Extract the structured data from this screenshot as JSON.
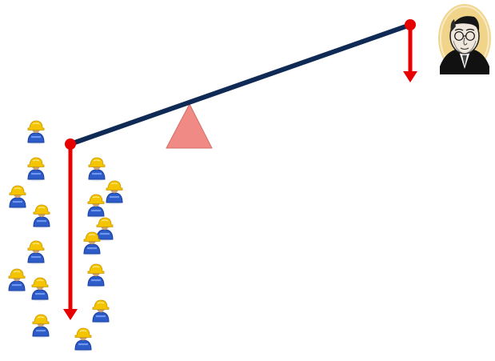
{
  "diagram": {
    "colors": {
      "beam": "#0f2a55",
      "force_arrow": "#e60000",
      "pivot_dot": "#e60000",
      "fulcrum": "#f08a84",
      "fulcrum_stroke": "#d66d69",
      "worker_helmet": "#f5c400",
      "worker_helmet_dark": "#c99600",
      "worker_body": "#2d5bc8",
      "worker_body_dark": "#183f9c",
      "worker_skin": "#c79f73",
      "portrait_bg": "#f0d48a",
      "portrait_suit": "#111111"
    },
    "workers": [
      {
        "icon": "worker-icon"
      },
      {
        "icon": "worker-icon"
      },
      {
        "icon": "worker-icon"
      },
      {
        "icon": "worker-icon"
      },
      {
        "icon": "worker-icon"
      },
      {
        "icon": "worker-icon"
      },
      {
        "icon": "worker-icon"
      },
      {
        "icon": "worker-icon"
      },
      {
        "icon": "worker-icon"
      },
      {
        "icon": "worker-icon"
      },
      {
        "icon": "worker-icon"
      },
      {
        "icon": "worker-icon"
      },
      {
        "icon": "worker-icon"
      },
      {
        "icon": "worker-icon"
      },
      {
        "icon": "worker-icon"
      },
      {
        "icon": "worker-icon"
      }
    ],
    "portrait": {
      "icon": "businessman-portrait-icon"
    }
  }
}
